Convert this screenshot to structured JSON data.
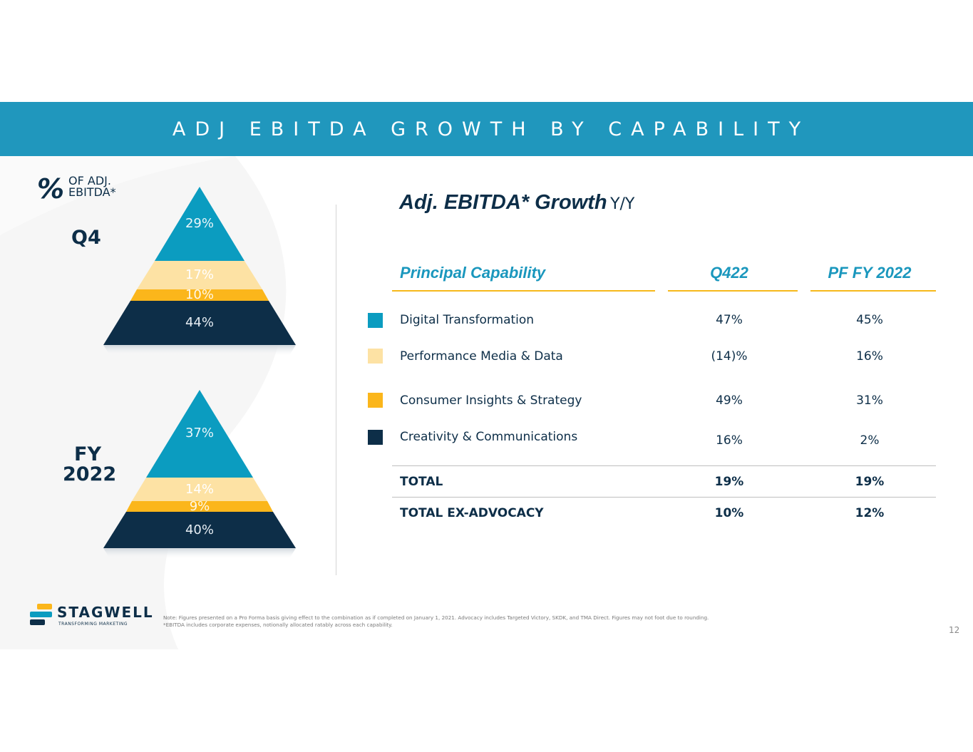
{
  "banner": {
    "title": "ADJ EBITDA GROWTH BY CAPABILITY"
  },
  "left_panel": {
    "percent_symbol": "%",
    "percent_label_line1": "OF ADJ.",
    "percent_label_line2": "EBITDA*",
    "q4": {
      "label": "Q4",
      "slices": [
        "29%",
        "17%",
        "10%",
        "44%"
      ]
    },
    "fy": {
      "label_line1": "FY",
      "label_line2": "2022",
      "slices": [
        "37%",
        "14%",
        "9%",
        "40%"
      ]
    }
  },
  "right_panel": {
    "title": "Adj. EBITDA* Growth",
    "title_suffix": "Y/Y",
    "headers": {
      "capability": "Principal Capability",
      "q4": "Q422",
      "fy": "PF FY 2022"
    },
    "rows": [
      {
        "label": "Digital Transformation",
        "q4": "47%",
        "fy": "45%",
        "color": "#0b9cc0"
      },
      {
        "label": "Performance Media & Data",
        "q4": "(14)%",
        "fy": "16%",
        "color": "#fde2a4"
      },
      {
        "label": "Consumer Insights & Strategy",
        "q4": "49%",
        "fy": "31%",
        "color": "#fbb61b"
      },
      {
        "label": "Creativity & Communications",
        "q4": "16%",
        "fy": "2%",
        "color": "#0d2e48"
      }
    ],
    "total": {
      "label": "TOTAL",
      "q4": "19%",
      "fy": "19%"
    },
    "total_ex": {
      "label": "TOTAL EX-ADVOCACY",
      "q4": "10%",
      "fy": "12%"
    }
  },
  "colors": {
    "banner": "#2097bd",
    "teal": "#0b9cc0",
    "light_yellow": "#fde2a4",
    "gold": "#fbb61b",
    "navy": "#0d2e48",
    "header_text": "#1a97bd",
    "header_rule": "#f6b81a"
  },
  "footer": {
    "logo_name": "STAGWELL",
    "logo_tagline": "TRANSFORMING MARKETING",
    "note_line1": "Note: Figures presented on a Pro Forma basis giving effect to the combination as if completed on January 1, 2021.  Advocacy includes Targeted Victory, SKDK, and TMA Direct. Figures may not foot due to rounding.",
    "note_line2": "*EBITDA includes corporate expenses, notionally allocated ratably across each capability.",
    "page_number": "12"
  }
}
